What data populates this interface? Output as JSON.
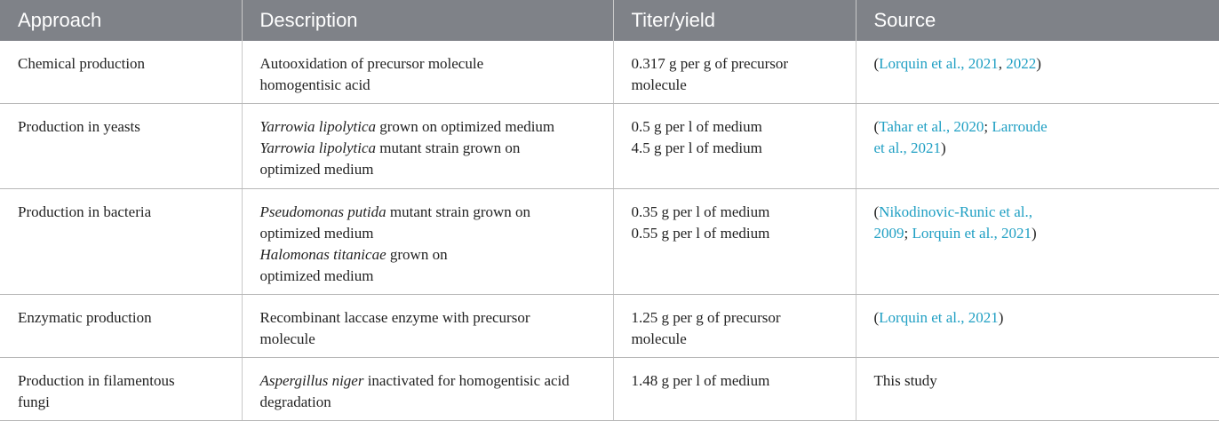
{
  "table": {
    "headers": [
      "Approach",
      "Description",
      "Titer/yield",
      "Source"
    ],
    "rows": [
      [
        [
          [
            {
              "text": "Chemical production"
            }
          ]
        ],
        [
          [
            {
              "text": "Autooxidation of precursor molecule"
            }
          ],
          [
            {
              "text": "homogentisic acid"
            }
          ]
        ],
        [
          [
            {
              "text": "0.317 g per g of precursor"
            }
          ],
          [
            {
              "text": "molecule"
            }
          ]
        ],
        [
          [
            {
              "text": "("
            },
            {
              "text": "Lorquin et al., 2021",
              "link": true
            },
            {
              "text": ", "
            },
            {
              "text": "2022",
              "link": true
            },
            {
              "text": ")"
            }
          ]
        ]
      ],
      [
        [
          [
            {
              "text": "Production in yeasts"
            }
          ]
        ],
        [
          [
            {
              "text": "Yarrowia lipolytica",
              "italic": true
            },
            {
              "text": " grown on optimized medium"
            }
          ],
          [
            {
              "text": "Yarrowia lipolytica",
              "italic": true
            },
            {
              "text": " mutant strain grown on"
            }
          ],
          [
            {
              "text": "optimized medium"
            }
          ]
        ],
        [
          [
            {
              "text": "0.5 g per l of medium"
            }
          ],
          [
            {
              "text": "4.5 g per l of medium"
            }
          ]
        ],
        [
          [
            {
              "text": "("
            },
            {
              "text": "Tahar et al., 2020",
              "link": true
            },
            {
              "text": "; "
            },
            {
              "text": "Larroude",
              "link": true
            }
          ],
          [
            {
              "text": "et al., 2021",
              "link": true
            },
            {
              "text": ")"
            }
          ]
        ]
      ],
      [
        [
          [
            {
              "text": "Production in bacteria"
            }
          ]
        ],
        [
          [
            {
              "text": "Pseudomonas putida",
              "italic": true
            },
            {
              "text": " mutant strain grown on"
            }
          ],
          [
            {
              "text": "optimized medium"
            }
          ],
          [
            {
              "text": "Halomonas titanicae",
              "italic": true
            },
            {
              "text": " grown on"
            }
          ],
          [
            {
              "text": "optimized medium"
            }
          ]
        ],
        [
          [
            {
              "text": "0.35 g per l of medium"
            }
          ],
          [
            {
              "text": "0.55 g per l of medium"
            }
          ]
        ],
        [
          [
            {
              "text": "("
            },
            {
              "text": "Nikodinovic-Runic et al.,",
              "link": true
            }
          ],
          [
            {
              "text": "2009",
              "link": true
            },
            {
              "text": "; "
            },
            {
              "text": "Lorquin et al., 2021",
              "link": true
            },
            {
              "text": ")"
            }
          ]
        ]
      ],
      [
        [
          [
            {
              "text": "Enzymatic production"
            }
          ]
        ],
        [
          [
            {
              "text": "Recombinant laccase enzyme with precursor"
            }
          ],
          [
            {
              "text": "molecule"
            }
          ]
        ],
        [
          [
            {
              "text": "1.25 g per g of precursor"
            }
          ],
          [
            {
              "text": "molecule"
            }
          ]
        ],
        [
          [
            {
              "text": "("
            },
            {
              "text": "Lorquin et al., 2021",
              "link": true
            },
            {
              "text": ")"
            }
          ]
        ]
      ],
      [
        [
          [
            {
              "text": "Production in filamentous"
            }
          ],
          [
            {
              "text": "fungi"
            }
          ]
        ],
        [
          [
            {
              "text": "Aspergillus niger",
              "italic": true
            },
            {
              "text": " inactivated for homogentisic acid"
            }
          ],
          [
            {
              "text": "degradation"
            }
          ]
        ],
        [
          [
            {
              "text": "1.48 g per l of medium"
            }
          ]
        ],
        [
          [
            {
              "text": "This study"
            }
          ]
        ]
      ]
    ]
  }
}
